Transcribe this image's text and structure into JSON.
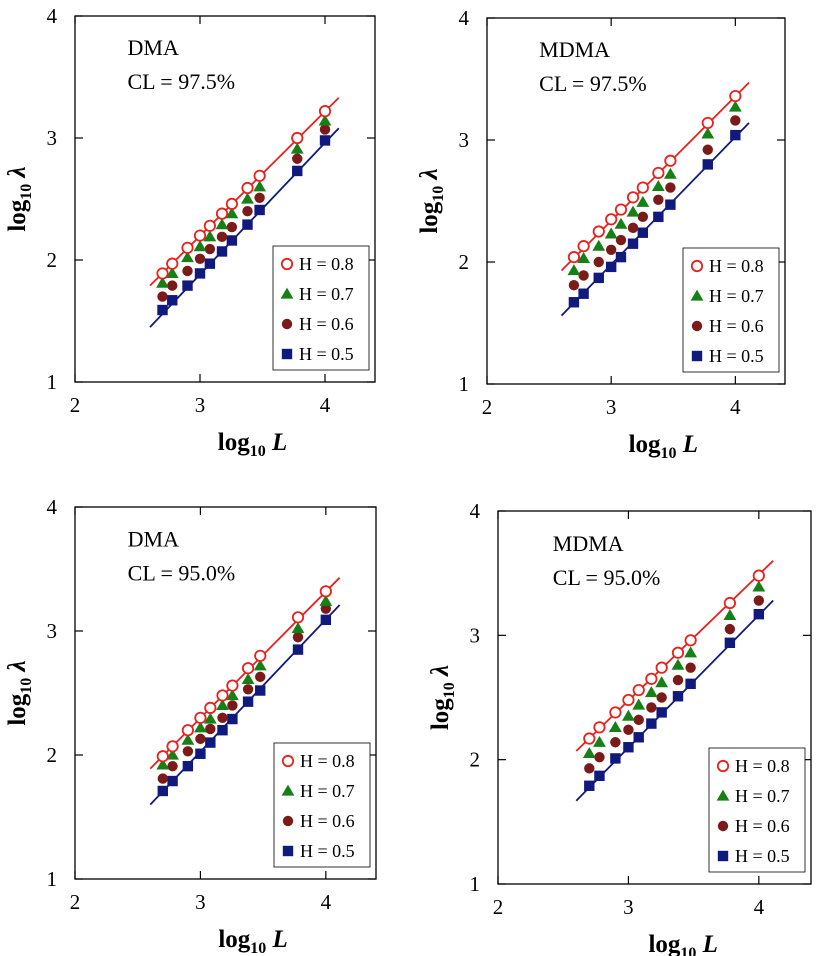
{
  "chart_data": [
    {
      "type": "scatter",
      "annotation": [
        "DMA",
        "CL = 97.5%"
      ],
      "xlabel": {
        "main": "log",
        "sub": "10",
        "var": "L"
      },
      "ylabel": {
        "main": "log",
        "sub": "10",
        "var": "λ"
      },
      "xlim": [
        2,
        4.4
      ],
      "ylim": [
        1,
        4
      ],
      "xticks": [
        "2",
        "3",
        "4"
      ],
      "yticks": [
        "1",
        "2",
        "3",
        "4"
      ],
      "x": [
        2.7,
        2.778,
        2.9,
        3.0,
        3.079,
        3.176,
        3.255,
        3.38,
        3.477,
        3.778,
        4.0
      ],
      "series": [
        {
          "name": "H = 0.8",
          "color": "#e8211c",
          "marker": "open-circle",
          "values": [
            1.89,
            1.97,
            2.1,
            2.2,
            2.28,
            2.38,
            2.46,
            2.59,
            2.69,
            3.0,
            3.22
          ]
        },
        {
          "name": "H = 0.7",
          "color": "#167f16",
          "marker": "triangle",
          "values": [
            1.81,
            1.89,
            2.02,
            2.11,
            2.19,
            2.29,
            2.38,
            2.5,
            2.6,
            2.91,
            3.14
          ]
        },
        {
          "name": "H = 0.6",
          "color": "#7c1a1a",
          "marker": "filled-circle",
          "values": [
            1.7,
            1.79,
            1.91,
            2.01,
            2.09,
            2.19,
            2.27,
            2.4,
            2.51,
            2.83,
            3.07
          ]
        },
        {
          "name": "H = 0.5",
          "color": "#10197c",
          "marker": "square",
          "values": [
            1.59,
            1.67,
            1.79,
            1.89,
            1.97,
            2.07,
            2.16,
            2.29,
            2.41,
            2.73,
            2.98
          ]
        }
      ],
      "fit_lines": [
        {
          "color": "#e8211c",
          "x": [
            2.6,
            4.11
          ],
          "y": [
            1.79,
            3.33
          ]
        },
        {
          "color": "#10197c",
          "x": [
            2.6,
            4.11
          ],
          "y": [
            1.45,
            3.08
          ]
        }
      ],
      "legend": "lower-right"
    },
    {
      "type": "scatter",
      "annotation": [
        "MDMA",
        "CL = 97.5%"
      ],
      "xlabel": {
        "main": "log",
        "sub": "10",
        "var": "L"
      },
      "ylabel": {
        "main": "log",
        "sub": "10",
        "var": "λ"
      },
      "xlim": [
        2,
        4.4
      ],
      "ylim": [
        1,
        4
      ],
      "xticks": [
        "2",
        "3",
        "4"
      ],
      "yticks": [
        "1",
        "2",
        "3",
        "4"
      ],
      "x": [
        2.7,
        2.778,
        2.9,
        3.0,
        3.079,
        3.176,
        3.255,
        3.38,
        3.477,
        3.778,
        4.0
      ],
      "series": [
        {
          "name": "H = 0.8",
          "color": "#e8211c",
          "marker": "open-circle",
          "values": [
            2.04,
            2.13,
            2.25,
            2.35,
            2.43,
            2.53,
            2.61,
            2.73,
            2.83,
            3.14,
            3.36
          ]
        },
        {
          "name": "H = 0.7",
          "color": "#167f16",
          "marker": "triangle",
          "values": [
            1.93,
            2.03,
            2.13,
            2.23,
            2.31,
            2.41,
            2.49,
            2.62,
            2.72,
            3.05,
            3.27
          ]
        },
        {
          "name": "H = 0.6",
          "color": "#7c1a1a",
          "marker": "filled-circle",
          "values": [
            1.81,
            1.89,
            2.0,
            2.1,
            2.18,
            2.28,
            2.37,
            2.51,
            2.61,
            2.92,
            3.16
          ]
        },
        {
          "name": "H = 0.5",
          "color": "#10197c",
          "marker": "square",
          "values": [
            1.67,
            1.74,
            1.87,
            1.96,
            2.04,
            2.15,
            2.24,
            2.37,
            2.47,
            2.8,
            3.04
          ]
        }
      ],
      "fit_lines": [
        {
          "color": "#e8211c",
          "x": [
            2.6,
            4.11
          ],
          "y": [
            1.93,
            3.47
          ]
        },
        {
          "color": "#10197c",
          "x": [
            2.6,
            4.11
          ],
          "y": [
            1.56,
            3.14
          ]
        }
      ],
      "legend": "lower-right"
    },
    {
      "type": "scatter",
      "annotation": [
        "DMA",
        "CL = 95.0%"
      ],
      "xlabel": {
        "main": "log",
        "sub": "10",
        "var": "L"
      },
      "ylabel": {
        "main": "log",
        "sub": "10",
        "var": "λ"
      },
      "xlim": [
        2,
        4.4
      ],
      "ylim": [
        1,
        4
      ],
      "xticks": [
        "2",
        "3",
        "4"
      ],
      "yticks": [
        "1",
        "2",
        "3",
        "4"
      ],
      "x": [
        2.7,
        2.778,
        2.9,
        3.0,
        3.079,
        3.176,
        3.255,
        3.38,
        3.477,
        3.778,
        4.0
      ],
      "series": [
        {
          "name": "H = 0.8",
          "color": "#e8211c",
          "marker": "open-circle",
          "values": [
            1.99,
            2.07,
            2.2,
            2.3,
            2.38,
            2.48,
            2.56,
            2.7,
            2.8,
            3.11,
            3.32
          ]
        },
        {
          "name": "H = 0.7",
          "color": "#167f16",
          "marker": "triangle",
          "values": [
            1.92,
            2.0,
            2.12,
            2.22,
            2.29,
            2.4,
            2.48,
            2.61,
            2.72,
            3.02,
            3.24
          ]
        },
        {
          "name": "H = 0.6",
          "color": "#7c1a1a",
          "marker": "filled-circle",
          "values": [
            1.81,
            1.91,
            2.03,
            2.13,
            2.21,
            2.3,
            2.4,
            2.53,
            2.63,
            2.95,
            3.18
          ]
        },
        {
          "name": "H = 0.5",
          "color": "#10197c",
          "marker": "square",
          "values": [
            1.71,
            1.79,
            1.91,
            2.01,
            2.1,
            2.2,
            2.29,
            2.43,
            2.52,
            2.85,
            3.09
          ]
        }
      ],
      "fit_lines": [
        {
          "color": "#e8211c",
          "x": [
            2.6,
            4.11
          ],
          "y": [
            1.89,
            3.43
          ]
        },
        {
          "color": "#10197c",
          "x": [
            2.6,
            4.11
          ],
          "y": [
            1.6,
            3.21
          ]
        }
      ],
      "legend": "lower-right"
    },
    {
      "type": "scatter",
      "annotation": [
        "MDMA",
        "CL = 95.0%"
      ],
      "xlabel": {
        "main": "log",
        "sub": "10",
        "var": "L"
      },
      "ylabel": {
        "main": "log",
        "sub": "10",
        "var": "λ"
      },
      "xlim": [
        2,
        4.4
      ],
      "ylim": [
        1,
        4
      ],
      "xticks": [
        "2",
        "3",
        "4"
      ],
      "yticks": [
        "1",
        "2",
        "3",
        "4"
      ],
      "x": [
        2.7,
        2.778,
        2.9,
        3.0,
        3.079,
        3.176,
        3.255,
        3.38,
        3.477,
        3.778,
        4.0
      ],
      "series": [
        {
          "name": "H = 0.8",
          "color": "#e8211c",
          "marker": "open-circle",
          "values": [
            2.17,
            2.26,
            2.38,
            2.48,
            2.56,
            2.65,
            2.74,
            2.86,
            2.96,
            3.26,
            3.48
          ]
        },
        {
          "name": "H = 0.7",
          "color": "#167f16",
          "marker": "triangle",
          "values": [
            2.05,
            2.14,
            2.26,
            2.35,
            2.44,
            2.54,
            2.62,
            2.76,
            2.86,
            3.16,
            3.39
          ]
        },
        {
          "name": "H = 0.6",
          "color": "#7c1a1a",
          "marker": "filled-circle",
          "values": [
            1.93,
            2.02,
            2.14,
            2.24,
            2.32,
            2.42,
            2.5,
            2.64,
            2.74,
            3.05,
            3.28
          ]
        },
        {
          "name": "H = 0.5",
          "color": "#10197c",
          "marker": "square",
          "values": [
            1.79,
            1.87,
            2.01,
            2.1,
            2.18,
            2.29,
            2.38,
            2.51,
            2.61,
            2.94,
            3.17
          ]
        }
      ],
      "fit_lines": [
        {
          "color": "#e8211c",
          "x": [
            2.6,
            4.11
          ],
          "y": [
            2.07,
            3.6
          ]
        },
        {
          "color": "#10197c",
          "x": [
            2.6,
            4.11
          ],
          "y": [
            1.67,
            3.28
          ]
        }
      ],
      "legend": "lower-right"
    }
  ]
}
